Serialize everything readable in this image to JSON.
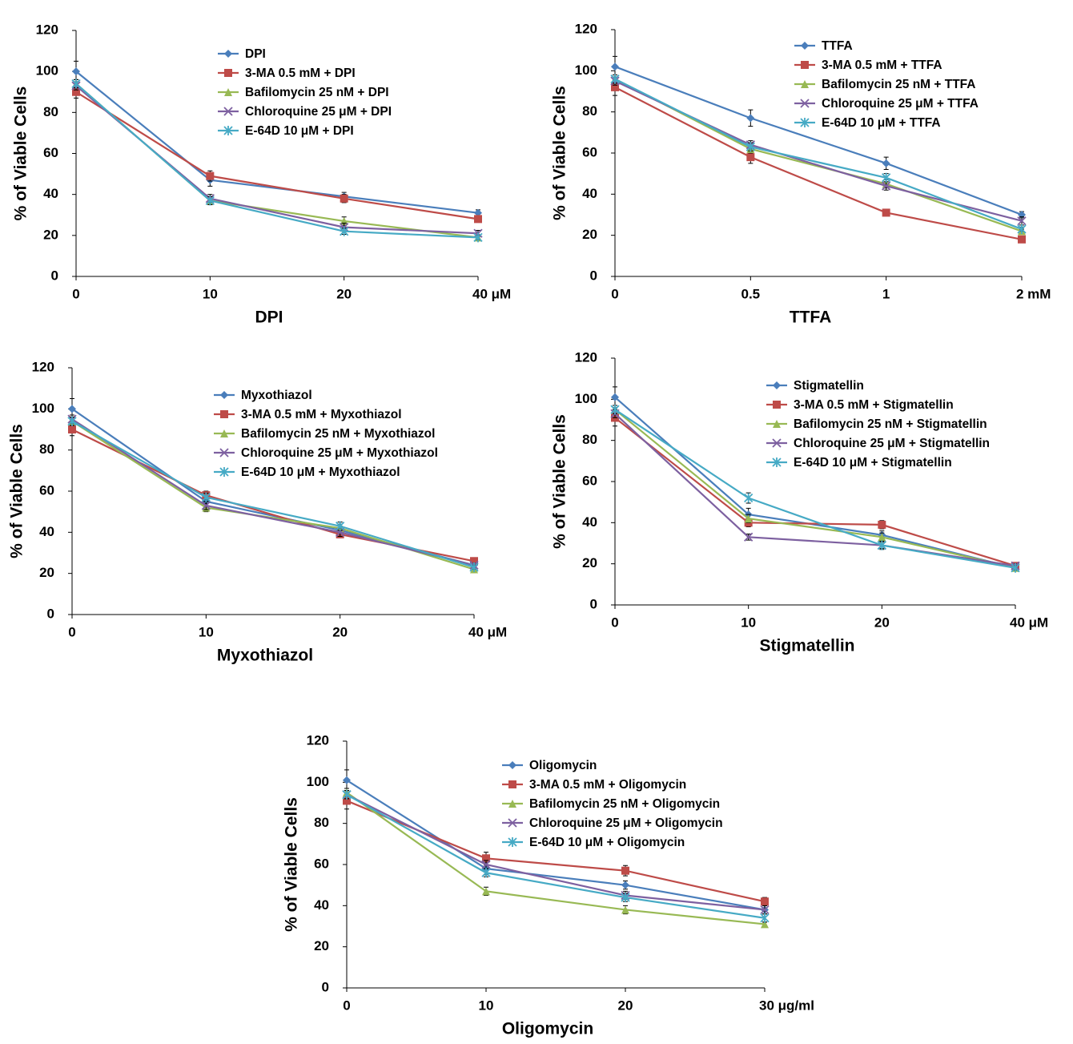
{
  "chart_data": [
    {
      "type": "line",
      "x_label": "DPI",
      "y_label": "% of Viable Cells",
      "categories": [
        "0",
        "10",
        "20",
        "40 μM"
      ],
      "ylim": [
        0,
        120
      ],
      "yticks": [
        0,
        20,
        40,
        60,
        80,
        100,
        120
      ],
      "series": [
        {
          "name": "DPI",
          "color": "#4a7ebb",
          "marker": "diamond",
          "values": [
            100,
            47,
            39,
            31
          ],
          "errors": [
            5,
            3,
            2,
            1.5
          ]
        },
        {
          "name": "3-MA 0.5 mM + DPI",
          "color": "#be4b48",
          "marker": "square",
          "values": [
            90,
            49,
            38,
            28
          ],
          "errors": [
            3,
            2.5,
            2,
            1.5
          ]
        },
        {
          "name": "Bafilomycin 25 nM + DPI",
          "color": "#98b954",
          "marker": "triangle",
          "values": [
            94,
            37,
            27,
            19
          ],
          "errors": [
            2,
            2,
            2,
            1
          ]
        },
        {
          "name": "Chloroquine 25 μM  + DPI",
          "color": "#7d60a0",
          "marker": "x",
          "values": [
            93,
            38,
            24,
            21
          ],
          "errors": [
            2,
            2,
            2,
            1.5
          ]
        },
        {
          "name": "E-64D 10 μM  + DPI",
          "color": "#46aac5",
          "marker": "star",
          "values": [
            94,
            37,
            22,
            19
          ],
          "errors": [
            2,
            2,
            1.5,
            1
          ]
        }
      ]
    },
    {
      "type": "line",
      "x_label": "TTFA",
      "y_label": "% of Viable Cells",
      "categories": [
        "0",
        "0.5",
        "1",
        "2 mM"
      ],
      "ylim": [
        0,
        120
      ],
      "yticks": [
        0,
        20,
        40,
        60,
        80,
        100,
        120
      ],
      "series": [
        {
          "name": "TTFA",
          "color": "#4a7ebb",
          "marker": "diamond",
          "values": [
            102,
            77,
            55,
            30
          ],
          "errors": [
            5,
            4,
            3,
            1.5
          ]
        },
        {
          "name": "3-MA 0.5 mM + TTFA",
          "color": "#be4b48",
          "marker": "square",
          "values": [
            92,
            58,
            31,
            18
          ],
          "errors": [
            4,
            3,
            1,
            1
          ]
        },
        {
          "name": "Bafilomycin 25 nM + TTFA",
          "color": "#98b954",
          "marker": "triangle",
          "values": [
            96,
            62,
            45,
            22
          ],
          "errors": [
            2,
            2,
            2,
            1
          ]
        },
        {
          "name": "Chloroquine 25 μM  + TTFA",
          "color": "#7d60a0",
          "marker": "x",
          "values": [
            95,
            64,
            44,
            27
          ],
          "errors": [
            2,
            2,
            2,
            2
          ]
        },
        {
          "name": "E-64D 10 μM  + TTFA",
          "color": "#46aac5",
          "marker": "star",
          "values": [
            96,
            63,
            48,
            23
          ],
          "errors": [
            2,
            2,
            2,
            1
          ]
        }
      ]
    },
    {
      "type": "line",
      "x_label": "Myxothiazol",
      "y_label": "% of Viable Cells",
      "categories": [
        "0",
        "10",
        "20",
        "40 μM"
      ],
      "ylim": [
        0,
        120
      ],
      "yticks": [
        0,
        20,
        40,
        60,
        80,
        100,
        120
      ],
      "series": [
        {
          "name": "Myxothiazol",
          "color": "#4a7ebb",
          "marker": "diamond",
          "values": [
            100,
            55,
            41,
            24
          ],
          "errors": [
            5,
            3,
            2,
            1.5
          ]
        },
        {
          "name": "3-MA 0.5 mM + Myxothiazol",
          "color": "#be4b48",
          "marker": "square",
          "values": [
            90,
            58,
            39,
            26
          ],
          "errors": [
            3,
            2,
            1.5,
            1
          ]
        },
        {
          "name": "Bafilomycin 25 nM + Myxothiazol",
          "color": "#98b954",
          "marker": "triangle",
          "values": [
            94,
            52,
            42,
            22
          ],
          "errors": [
            2,
            2,
            2,
            1
          ]
        },
        {
          "name": "Chloroquine 25 μM  + Myxothiazol",
          "color": "#7d60a0",
          "marker": "x",
          "values": [
            95,
            53,
            40,
            24
          ],
          "errors": [
            2,
            2,
            2,
            1
          ]
        },
        {
          "name": "E-64D 10 μM  + Myxothiazol",
          "color": "#46aac5",
          "marker": "star",
          "values": [
            94,
            57,
            43,
            23
          ],
          "errors": [
            2,
            2,
            2,
            1
          ]
        }
      ]
    },
    {
      "type": "line",
      "x_label": "Stigmatellin",
      "y_label": "% of Viable Cells",
      "categories": [
        "0",
        "10",
        "20",
        "40 μM"
      ],
      "ylim": [
        0,
        120
      ],
      "yticks": [
        0,
        20,
        40,
        60,
        80,
        100,
        120
      ],
      "series": [
        {
          "name": "Stigmatellin",
          "color": "#4a7ebb",
          "marker": "diamond",
          "values": [
            101,
            44,
            34,
            18
          ],
          "errors": [
            5,
            3,
            2,
            1
          ]
        },
        {
          "name": "3-MA 0.5 mM + Stigmatellin",
          "color": "#be4b48",
          "marker": "square",
          "values": [
            91,
            40,
            39,
            19
          ],
          "errors": [
            4,
            2,
            2,
            1
          ]
        },
        {
          "name": "Bafilomycin 25 nM + Stigmatellin",
          "color": "#98b954",
          "marker": "triangle",
          "values": [
            95,
            42,
            33,
            18
          ],
          "errors": [
            2,
            2,
            2,
            1
          ]
        },
        {
          "name": "Chloroquine 25 μM  + Stigmatellin",
          "color": "#7d60a0",
          "marker": "x",
          "values": [
            93,
            33,
            29,
            19
          ],
          "errors": [
            2,
            1.5,
            2,
            1
          ]
        },
        {
          "name": "E-64D 10 μM  + Stigmatellin",
          "color": "#46aac5",
          "marker": "star",
          "values": [
            95,
            52,
            29,
            18
          ],
          "errors": [
            2,
            2.5,
            1.5,
            1
          ]
        }
      ]
    },
    {
      "type": "line",
      "x_label": "Oligomycin",
      "y_label": "% of Viable Cells",
      "categories": [
        "0",
        "10",
        "20",
        "30 μg/ml"
      ],
      "ylim": [
        0,
        120
      ],
      "yticks": [
        0,
        20,
        40,
        60,
        80,
        100,
        120
      ],
      "series": [
        {
          "name": "Oligomycin",
          "color": "#4a7ebb",
          "marker": "diamond",
          "values": [
            101,
            58,
            50,
            38
          ],
          "errors": [
            5,
            3,
            2,
            2
          ]
        },
        {
          "name": "3-MA 0.5 mM + Oligomycin",
          "color": "#be4b48",
          "marker": "square",
          "values": [
            91,
            63,
            57,
            42
          ],
          "errors": [
            4,
            3,
            2.5,
            2
          ]
        },
        {
          "name": "Bafilomycin 25 nM + Oligomycin",
          "color": "#98b954",
          "marker": "triangle",
          "values": [
            95,
            47,
            38,
            31
          ],
          "errors": [
            2,
            2,
            2,
            1
          ]
        },
        {
          "name": "Chloroquine 25 μM  + Oligomycin",
          "color": "#7d60a0",
          "marker": "x",
          "values": [
            94,
            60,
            45,
            38
          ],
          "errors": [
            2,
            2,
            2,
            2
          ]
        },
        {
          "name": "E-64D 10 μM  + Oligomycin",
          "color": "#46aac5",
          "marker": "star",
          "values": [
            94,
            56,
            44,
            34
          ],
          "errors": [
            2,
            2,
            2,
            2
          ]
        }
      ]
    }
  ]
}
